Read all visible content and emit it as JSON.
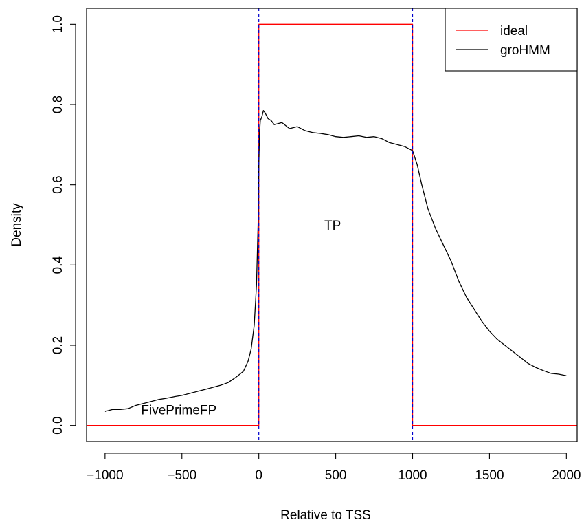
{
  "chart_data": {
    "type": "line",
    "title": "",
    "xlabel": "Relative to TSS",
    "ylabel": "Density",
    "xlim": [
      -1120,
      2070
    ],
    "ylim": [
      -0.04,
      1.04
    ],
    "xticks": [
      -1000,
      -500,
      0,
      500,
      1000,
      1500,
      2000
    ],
    "xtick_labels": [
      "−1000",
      "−500",
      "0",
      "500",
      "1000",
      "1500",
      "2000"
    ],
    "yticks": [
      0.0,
      0.2,
      0.4,
      0.6,
      0.8,
      1.0
    ],
    "ytick_labels": [
      "0.0",
      "0.2",
      "0.4",
      "0.6",
      "0.8",
      "1.0"
    ],
    "grid": false,
    "legend_position": "top-right",
    "legend": [
      {
        "label": "ideal",
        "color": "#ff0000"
      },
      {
        "label": "groHMM",
        "color": "#000000"
      }
    ],
    "vlines": {
      "x": [
        0,
        1000
      ],
      "color": "#0000cd",
      "style": "dashed"
    },
    "annotations": [
      {
        "text": "TP",
        "x": 480,
        "y": 0.5
      },
      {
        "text": "FivePrimeFP",
        "x": -520,
        "y": 0.04
      }
    ],
    "series": [
      {
        "name": "ideal",
        "color": "#ff0000",
        "x": [
          -1120,
          0,
          0,
          1000,
          1000,
          2070
        ],
        "y": [
          0,
          0,
          1,
          1,
          0,
          0
        ]
      },
      {
        "name": "groHMM",
        "color": "#000000",
        "x": [
          -1000,
          -950,
          -900,
          -850,
          -800,
          -750,
          -700,
          -650,
          -600,
          -550,
          -500,
          -450,
          -400,
          -350,
          -300,
          -250,
          -200,
          -150,
          -100,
          -70,
          -50,
          -30,
          -15,
          -5,
          0,
          5,
          10,
          20,
          30,
          40,
          60,
          80,
          100,
          150,
          200,
          250,
          300,
          350,
          400,
          450,
          500,
          550,
          600,
          650,
          700,
          750,
          800,
          850,
          900,
          950,
          1000,
          1030,
          1060,
          1100,
          1150,
          1200,
          1250,
          1300,
          1350,
          1400,
          1450,
          1500,
          1550,
          1600,
          1650,
          1700,
          1750,
          1800,
          1850,
          1900,
          1950,
          2000
        ],
        "y": [
          0.035,
          0.04,
          0.04,
          0.042,
          0.05,
          0.055,
          0.06,
          0.065,
          0.068,
          0.072,
          0.075,
          0.08,
          0.085,
          0.09,
          0.095,
          0.1,
          0.107,
          0.12,
          0.135,
          0.16,
          0.19,
          0.25,
          0.35,
          0.5,
          0.65,
          0.73,
          0.76,
          0.77,
          0.785,
          0.78,
          0.765,
          0.76,
          0.75,
          0.755,
          0.74,
          0.745,
          0.735,
          0.73,
          0.728,
          0.725,
          0.72,
          0.718,
          0.72,
          0.722,
          0.718,
          0.72,
          0.715,
          0.705,
          0.7,
          0.695,
          0.685,
          0.65,
          0.6,
          0.54,
          0.49,
          0.45,
          0.41,
          0.36,
          0.32,
          0.29,
          0.26,
          0.235,
          0.215,
          0.2,
          0.185,
          0.17,
          0.155,
          0.145,
          0.137,
          0.13,
          0.128,
          0.124
        ]
      }
    ]
  }
}
